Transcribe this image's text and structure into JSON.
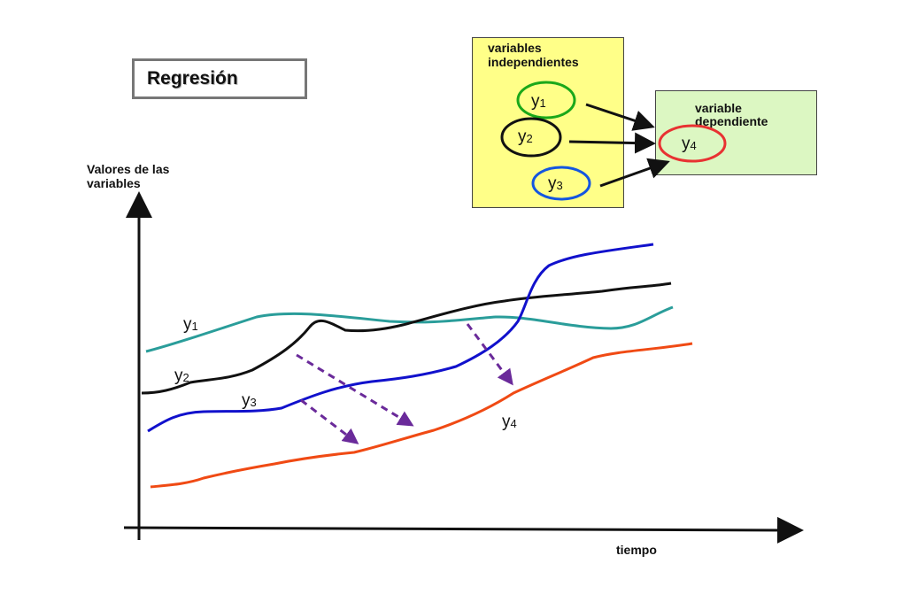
{
  "title": "Regresión",
  "independent_box": {
    "label_line1": "variables",
    "label_line2": "independientes",
    "nodes": [
      {
        "label": "y",
        "sub": "1",
        "color": "#1aa81a"
      },
      {
        "label": "y",
        "sub": "2",
        "color": "#111111"
      },
      {
        "label": "y",
        "sub": "3",
        "color": "#1456e0"
      }
    ]
  },
  "dependent_box": {
    "label_line1": "variable",
    "label_line2": "dependiente",
    "node": {
      "label": "y",
      "sub": "4",
      "color": "#e83232"
    }
  },
  "axes": {
    "y_label_line1": "Valores de las",
    "y_label_line2": "variables",
    "x_label": "tiempo"
  },
  "curves": [
    {
      "label": "y",
      "sub": "1",
      "color": "#2a9d9a"
    },
    {
      "label": "y",
      "sub": "2",
      "color": "#111111"
    },
    {
      "label": "y",
      "sub": "3",
      "color": "#1111cc"
    },
    {
      "label": "y",
      "sub": "4",
      "color": "#f04a14"
    }
  ],
  "colors": {
    "independent_box": "#ffff88",
    "dependent_box": "#dcf7c2",
    "dashed_arrows": "#6a2a9a"
  }
}
